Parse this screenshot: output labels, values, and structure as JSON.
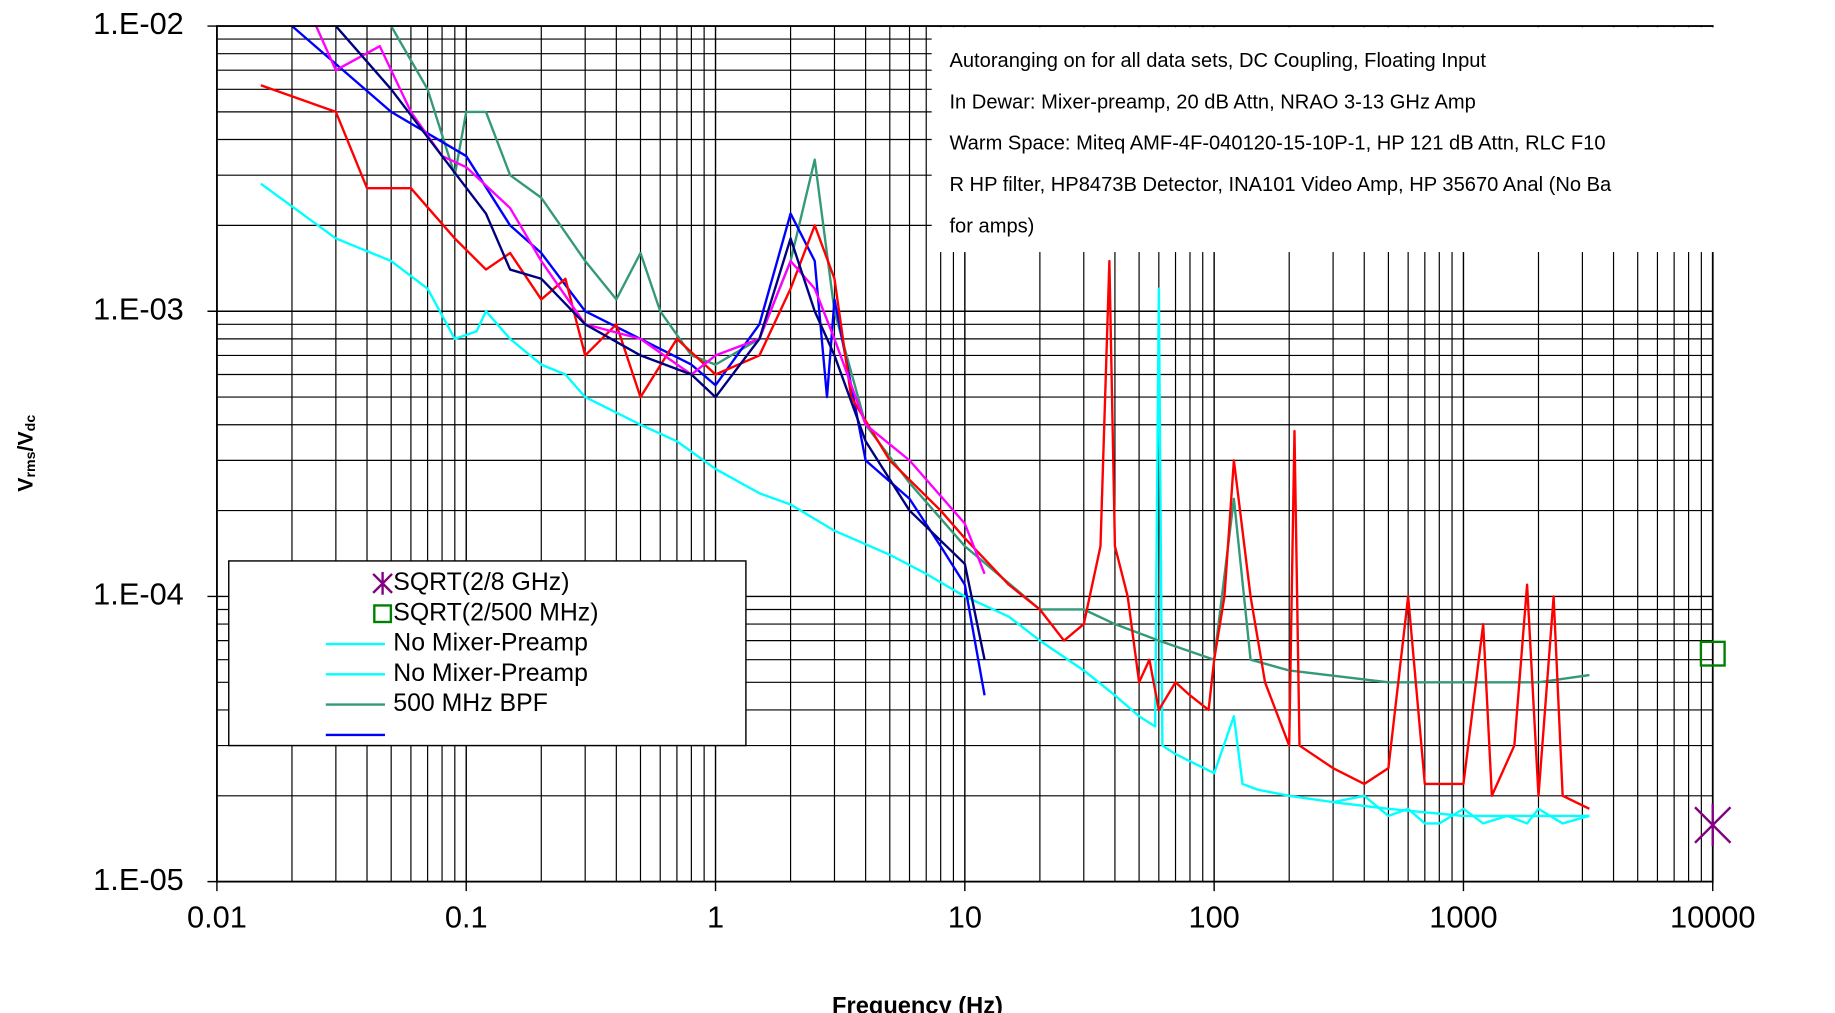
{
  "chart_data": {
    "type": "line",
    "xlabel": "Frequency (Hz)",
    "ylabel": [
      "V",
      "rms",
      "/V",
      "dc"
    ],
    "xscale": "log",
    "yscale": "log",
    "xlim": [
      0.01,
      10000
    ],
    "ylim": [
      1e-05,
      0.01
    ],
    "xticks": [
      0.01,
      0.1,
      1,
      10,
      100,
      1000,
      10000
    ],
    "yticks": [
      {
        "value": 1e-05,
        "label": "1.E-05"
      },
      {
        "value": 0.0001,
        "label": "1.E-04"
      },
      {
        "value": 0.001,
        "label": "1.E-03"
      },
      {
        "value": 0.01,
        "label": "1.E-02"
      }
    ],
    "grid": true,
    "minor_grid": true,
    "annotation": [
      "Autoranging on for all data sets, DC Coupling, Floating Input",
      "In Dewar: Mixer-preamp, 20 dB Attn, NRAO 3-13 GHz Amp",
      "Warm Space:  Miteq AMF-4F-040120-15-10P-1, HP 121 dB Attn, RLC F10",
      "R HP filter, HP8473B Detector, INA101 Video Amp, HP 35670 Anal (No Ba",
      "for amps)"
    ],
    "series": [
      {
        "name": "SQRT(2/8 GHz)",
        "type": "scatter",
        "marker": "star",
        "color": "#800080",
        "legend": true,
        "x": [
          10000
        ],
        "values": [
          1.58e-05
        ]
      },
      {
        "name": "SQRT(2/500 MHz)",
        "type": "scatter",
        "marker": "square",
        "color": "#008000",
        "legend": true,
        "x": [
          10000
        ],
        "values": [
          6.3e-05
        ]
      },
      {
        "name": "No Mixer-Preamp",
        "type": "line",
        "color": "#00ffff",
        "legend": true,
        "x": [
          0.015,
          0.03,
          0.05,
          0.07,
          0.09,
          0.11,
          0.12,
          0.15,
          0.2,
          0.25,
          0.3,
          0.5,
          0.7,
          1,
          1.5,
          2,
          3,
          5,
          7,
          10,
          15,
          20,
          30,
          40,
          50,
          58,
          60,
          62,
          70,
          100,
          120,
          130,
          150,
          200,
          300,
          500,
          1000,
          2000,
          3200
        ],
        "values": [
          0.0028,
          0.0018,
          0.0015,
          0.0012,
          0.0008,
          0.00085,
          0.001,
          0.0008,
          0.00065,
          0.0006,
          0.0005,
          0.0004,
          0.00035,
          0.00028,
          0.00023,
          0.00021,
          0.00017,
          0.00014,
          0.00012,
          0.0001,
          8.5e-05,
          7e-05,
          5.5e-05,
          4.5e-05,
          3.8e-05,
          3.5e-05,
          0.0012,
          3e-05,
          2.8e-05,
          2.4e-05,
          3.8e-05,
          2.2e-05,
          2.1e-05,
          2e-05,
          1.9e-05,
          1.8e-05,
          1.7e-05,
          1.7e-05,
          1.7e-05
        ]
      },
      {
        "name": "No Mixer-Preamp",
        "type": "line",
        "color": "#00ffff",
        "legend": true,
        "x": [
          300,
          400,
          500,
          600,
          700,
          800,
          1000,
          1200,
          1500,
          1800,
          2000,
          2500,
          3200
        ],
        "values": [
          1.9e-05,
          2e-05,
          1.7e-05,
          1.8e-05,
          1.6e-05,
          1.6e-05,
          1.8e-05,
          1.6e-05,
          1.7e-05,
          1.6e-05,
          1.8e-05,
          1.6e-05,
          1.7e-05
        ]
      },
      {
        "name": "500 MHz BPF",
        "type": "line",
        "color": "#339977",
        "legend": true,
        "x": [
          0.05,
          0.07,
          0.09,
          0.1,
          0.12,
          0.15,
          0.2,
          0.3,
          0.4,
          0.5,
          0.6,
          0.8,
          1,
          1.5,
          2,
          2.5,
          3,
          4,
          6,
          10,
          20,
          30,
          40,
          60,
          100,
          120,
          140,
          200,
          500,
          1000,
          2000,
          3200
        ],
        "values": [
          0.01,
          0.006,
          0.003,
          0.005,
          0.005,
          0.003,
          0.0025,
          0.0015,
          0.0011,
          0.0016,
          0.001,
          0.0007,
          0.00065,
          0.0008,
          0.0015,
          0.0034,
          0.001,
          0.0004,
          0.00025,
          0.00015,
          9e-05,
          9e-05,
          8e-05,
          7e-05,
          6e-05,
          0.00022,
          6e-05,
          5.5e-05,
          5e-05,
          5e-05,
          5e-05,
          5.3e-05
        ]
      },
      {
        "name": null,
        "type": "line",
        "color": "#0000ff",
        "legend": true,
        "x": [
          0.02,
          0.05,
          0.1,
          0.15,
          0.2,
          0.3,
          0.5,
          0.8,
          1,
          1.5,
          2,
          2.5,
          2.8,
          3,
          4,
          6,
          8,
          10,
          12
        ],
        "values": [
          0.01,
          0.005,
          0.0035,
          0.002,
          0.0016,
          0.001,
          0.0008,
          0.00065,
          0.00055,
          0.0009,
          0.0022,
          0.0015,
          0.0005,
          0.0011,
          0.0003,
          0.00022,
          0.00015,
          0.00011,
          4.5e-05
        ]
      },
      {
        "name": null,
        "type": "line",
        "color": "#ff0000",
        "legend": false,
        "x": [
          0.015,
          0.03,
          0.04,
          0.06,
          0.09,
          0.12,
          0.15,
          0.2,
          0.25,
          0.3,
          0.4,
          0.5,
          0.7,
          1,
          1.5,
          2,
          2.5,
          3,
          3.5,
          5,
          8,
          10,
          15,
          20,
          25,
          30,
          35,
          38,
          40,
          45,
          50,
          55,
          60,
          70,
          80,
          95,
          100,
          110,
          120,
          140,
          160,
          200,
          210,
          220,
          300,
          400,
          500,
          600,
          700,
          1000,
          1200,
          1300,
          1600,
          1800,
          2000,
          2300,
          2500,
          3200
        ],
        "values": [
          0.0062,
          0.005,
          0.0027,
          0.0027,
          0.0018,
          0.0014,
          0.0016,
          0.0011,
          0.0013,
          0.0007,
          0.0009,
          0.0005,
          0.0008,
          0.0006,
          0.0007,
          0.0012,
          0.002,
          0.0013,
          0.0005,
          0.0003,
          0.0002,
          0.00016,
          0.00011,
          9e-05,
          7e-05,
          8e-05,
          0.00015,
          0.0015,
          0.00015,
          0.0001,
          5e-05,
          6e-05,
          4e-05,
          5e-05,
          4.5e-05,
          4e-05,
          6e-05,
          0.0001,
          0.0003,
          0.0001,
          5e-05,
          3e-05,
          0.00038,
          3e-05,
          2.5e-05,
          2.2e-05,
          2.5e-05,
          0.0001,
          2.2e-05,
          2.2e-05,
          8e-05,
          2e-05,
          3e-05,
          0.00011,
          2e-05,
          0.0001,
          2e-05,
          1.8e-05
        ]
      },
      {
        "name": null,
        "type": "line",
        "color": "#ff00ff",
        "legend": false,
        "x": [
          0.025,
          0.03,
          0.045,
          0.06,
          0.08,
          0.1,
          0.15,
          0.2,
          0.3,
          0.5,
          0.8,
          1,
          1.5,
          2,
          2.5,
          3,
          4,
          6,
          10,
          12
        ],
        "values": [
          0.01,
          0.007,
          0.0085,
          0.005,
          0.0035,
          0.0032,
          0.0023,
          0.0015,
          0.0009,
          0.0008,
          0.0006,
          0.0007,
          0.0008,
          0.0015,
          0.0012,
          0.0008,
          0.0004,
          0.0003,
          0.00018,
          0.00012
        ]
      },
      {
        "name": null,
        "type": "line",
        "color": "#000080",
        "legend": false,
        "x": [
          0.03,
          0.05,
          0.08,
          0.12,
          0.15,
          0.2,
          0.3,
          0.5,
          0.8,
          1,
          1.5,
          2,
          2.5,
          3,
          4,
          6,
          10,
          12
        ],
        "values": [
          0.01,
          0.006,
          0.0035,
          0.0022,
          0.0014,
          0.0013,
          0.0009,
          0.0007,
          0.0006,
          0.0005,
          0.0008,
          0.0018,
          0.001,
          0.0007,
          0.00035,
          0.0002,
          0.00013,
          6e-05
        ]
      }
    ]
  }
}
